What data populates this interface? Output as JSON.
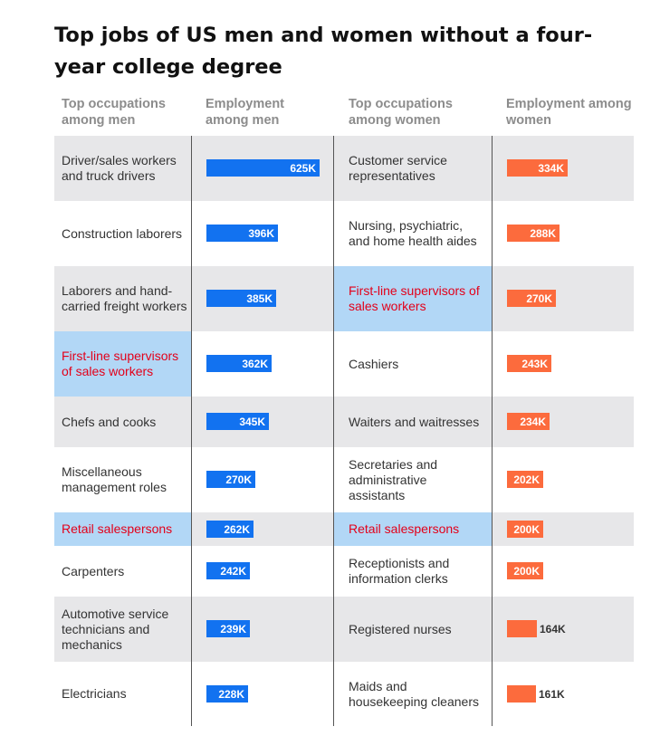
{
  "title": "Top jobs of US men and women without a four-year college degree",
  "headers": {
    "men_occupation": "Top occupations among men",
    "men_employment": "Employment among men",
    "women_occupation": "Top occupations among women",
    "women_employment": "Employment among women"
  },
  "colors": {
    "men_bar": "#1272f0",
    "women_bar": "#fc6b3d",
    "highlight_bg": "#b2d7f6",
    "highlight_text": "#e3001a",
    "row_shade": "#e7e7e9"
  },
  "chart_data": {
    "type": "bar",
    "orientation": "horizontal",
    "unit": "K",
    "title": "Top jobs of US men and women without a four-year college degree",
    "series": [
      {
        "name": "Employment among men",
        "categories": [
          "Driver/sales workers and truck drivers",
          "Construction laborers",
          "Laborers and hand-carried freight workers",
          "First-line supervisors of sales workers",
          "Chefs and cooks",
          "Miscellaneous management roles",
          "Retail salespersons",
          "Carpenters",
          "Automotive service technicians and mechanics",
          "Electricians"
        ],
        "values": [
          625,
          396,
          385,
          362,
          345,
          270,
          262,
          242,
          239,
          228
        ],
        "labels": [
          "625K",
          "396K",
          "385K",
          "362K",
          "345K",
          "270K",
          "262K",
          "242K",
          "239K",
          "228K"
        ],
        "highlighted": [
          false,
          false,
          false,
          true,
          false,
          false,
          true,
          false,
          false,
          false
        ]
      },
      {
        "name": "Employment among women",
        "categories": [
          "Customer service representatives",
          "Nursing, psychiatric, and home health aides",
          "First-line supervisors of sales workers",
          "Cashiers",
          "Waiters and waitresses",
          "Secretaries and administrative assistants",
          "Retail salespersons",
          "Receptionists and information clerks",
          "Registered nurses",
          "Maids and housekeeping cleaners"
        ],
        "values": [
          334,
          288,
          270,
          243,
          234,
          202,
          200,
          200,
          164,
          161
        ],
        "labels": [
          "334K",
          "288K",
          "270K",
          "243K",
          "234K",
          "202K",
          "200K",
          "200K",
          "164K",
          "161K"
        ],
        "highlighted": [
          false,
          false,
          true,
          false,
          false,
          false,
          true,
          false,
          false,
          false
        ]
      }
    ]
  }
}
